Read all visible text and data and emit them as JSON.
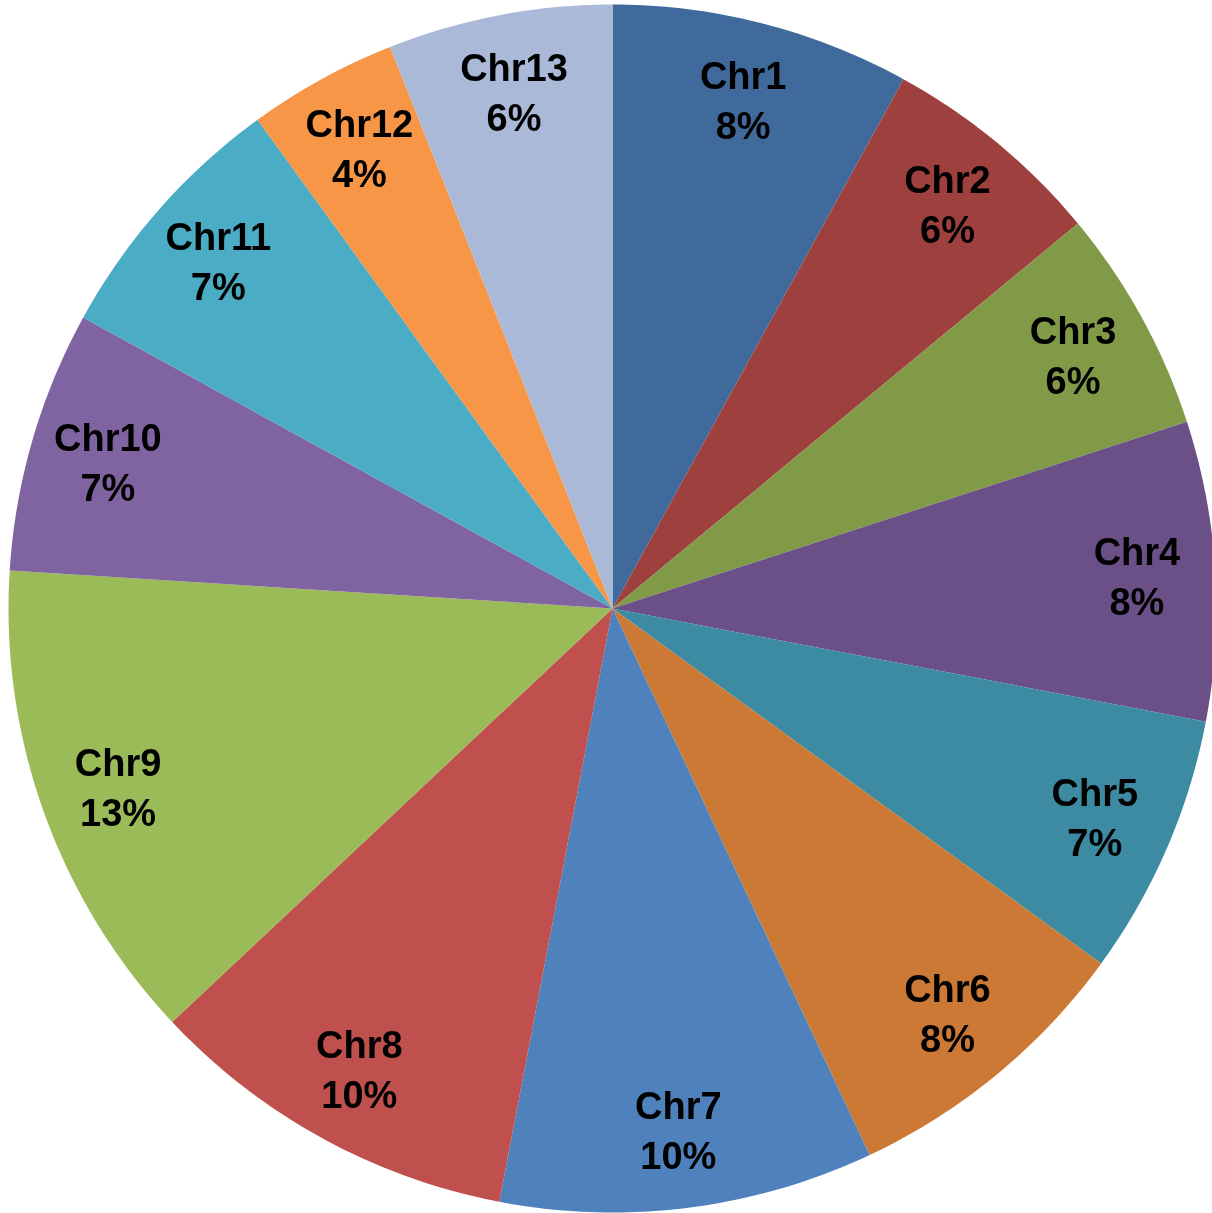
{
  "chart_data": {
    "type": "pie",
    "categories": [
      "Chr1",
      "Chr2",
      "Chr3",
      "Chr4",
      "Chr5",
      "Chr6",
      "Chr7",
      "Chr8",
      "Chr9",
      "Chr10",
      "Chr11",
      "Chr12",
      "Chr13"
    ],
    "values": [
      8,
      6,
      6,
      8,
      7,
      8,
      10,
      10,
      13,
      7,
      7,
      4,
      6
    ],
    "value_labels": [
      "8%",
      "6%",
      "6%",
      "8%",
      "7%",
      "8%",
      "10%",
      "10%",
      "13%",
      "7%",
      "7%",
      "4%",
      "6%"
    ],
    "colors": [
      "#406a9b",
      "#9e413e",
      "#809a48",
      "#6a5086",
      "#3c8ba2",
      "#cc7935",
      "#4f81bd",
      "#c0504d",
      "#9bbb59",
      "#8064a2",
      "#4bacc6",
      "#f79646",
      "#aab9d7"
    ]
  }
}
